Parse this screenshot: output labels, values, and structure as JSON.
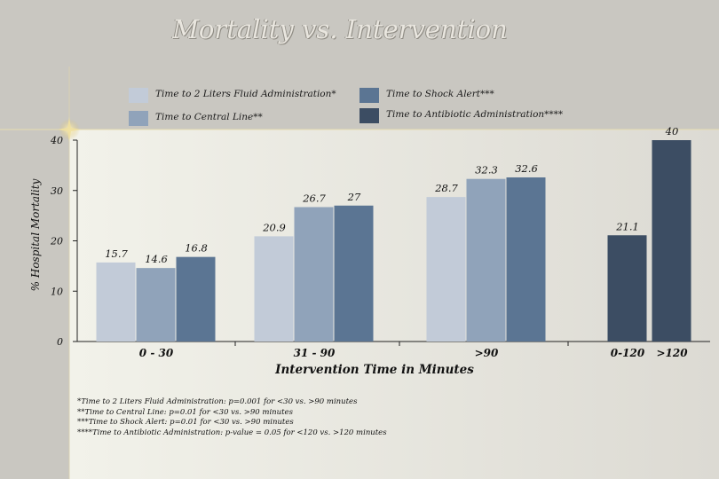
{
  "slide": {
    "title": "Mortality vs. Intervention"
  },
  "colors": {
    "series": [
      "#c2cbd8",
      "#90a3ba",
      "#5b7593",
      "#3c4d63"
    ],
    "panel": "#f5f5ef",
    "background": "#c9c7c1"
  },
  "legend": [
    {
      "label": "Time to 2 Liters Fluid Administration*"
    },
    {
      "label": "Time to Central Line**"
    },
    {
      "label": "Time to Shock Alert***"
    },
    {
      "label": "Time to Antibiotic Administration****"
    }
  ],
  "chart_data": {
    "type": "bar",
    "title": "Mortality vs. Intervention",
    "xlabel": "Intervention Time in Minutes",
    "ylabel": "% Hospital Mortality",
    "ylim": [
      0,
      40
    ],
    "yticks": [
      "0",
      "10",
      "20",
      "30",
      "40"
    ],
    "grid": false,
    "legend_position": "top",
    "groups": [
      {
        "label": "0 - 30",
        "bars": [
          {
            "series": 0,
            "value": 15.7,
            "label": "15.7"
          },
          {
            "series": 1,
            "value": 14.6,
            "label": "14.6"
          },
          {
            "series": 2,
            "value": 16.8,
            "label": "16.8"
          }
        ]
      },
      {
        "label": "31 - 90",
        "bars": [
          {
            "series": 0,
            "value": 20.9,
            "label": "20.9"
          },
          {
            "series": 1,
            "value": 26.7,
            "label": "26.7"
          },
          {
            "series": 2,
            "value": 27,
            "label": "27"
          }
        ]
      },
      {
        "label": ">90",
        "bars": [
          {
            "series": 0,
            "value": 28.7,
            "label": "28.7"
          },
          {
            "series": 1,
            "value": 32.3,
            "label": "32.3"
          },
          {
            "series": 2,
            "value": 32.6,
            "label": "32.6"
          }
        ]
      },
      {
        "label": "0-120",
        "bars": [
          {
            "series": 3,
            "value": 21.1,
            "label": "21.1"
          }
        ]
      },
      {
        "label": ">120",
        "bars": [
          {
            "series": 3,
            "value": 40,
            "label": "40"
          }
        ]
      }
    ],
    "footnotes": [
      "*Time to 2 Liters Fluid Administration: p=0.001 for <30 vs. >90 minutes",
      "**Time to Central Line: p=0.01 for <30 vs. >90 minutes",
      "***Time to Shock Alert: p=0.01 for <30 vs. >90 minutes",
      "****Time to Antibiotic Administration: p-value = 0.05 for <120 vs. >120 minutes"
    ]
  }
}
